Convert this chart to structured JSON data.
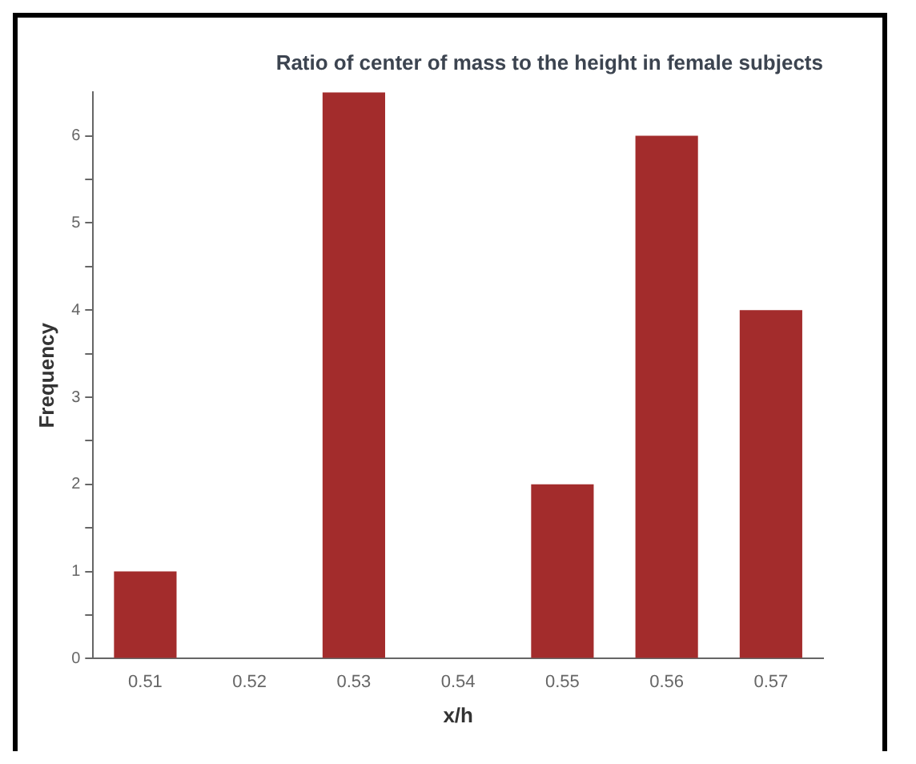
{
  "chart_data": {
    "type": "bar",
    "title": "Ratio of center of mass to the height in female subjects",
    "xlabel": "x/h",
    "ylabel": "Frequency",
    "categories": [
      "0.51",
      "0.52",
      "0.53",
      "0.54",
      "0.55",
      "0.56",
      "0.57"
    ],
    "values": [
      1,
      0,
      6.5,
      0,
      2,
      6,
      4
    ],
    "color": "#a32c2c",
    "ylim": [
      0,
      6.5
    ],
    "yticks": [
      0,
      {
        "value": 0.5,
        "label": null
      },
      1,
      {
        "value": 1.5,
        "label": null
      },
      2,
      {
        "value": 2.5,
        "label": null
      },
      3,
      {
        "value": 3.5,
        "label": null
      },
      4,
      {
        "value": 4.5,
        "label": null
      },
      5,
      {
        "value": 5.5,
        "label": null
      },
      6
    ],
    "grid": false,
    "legend": false
  }
}
